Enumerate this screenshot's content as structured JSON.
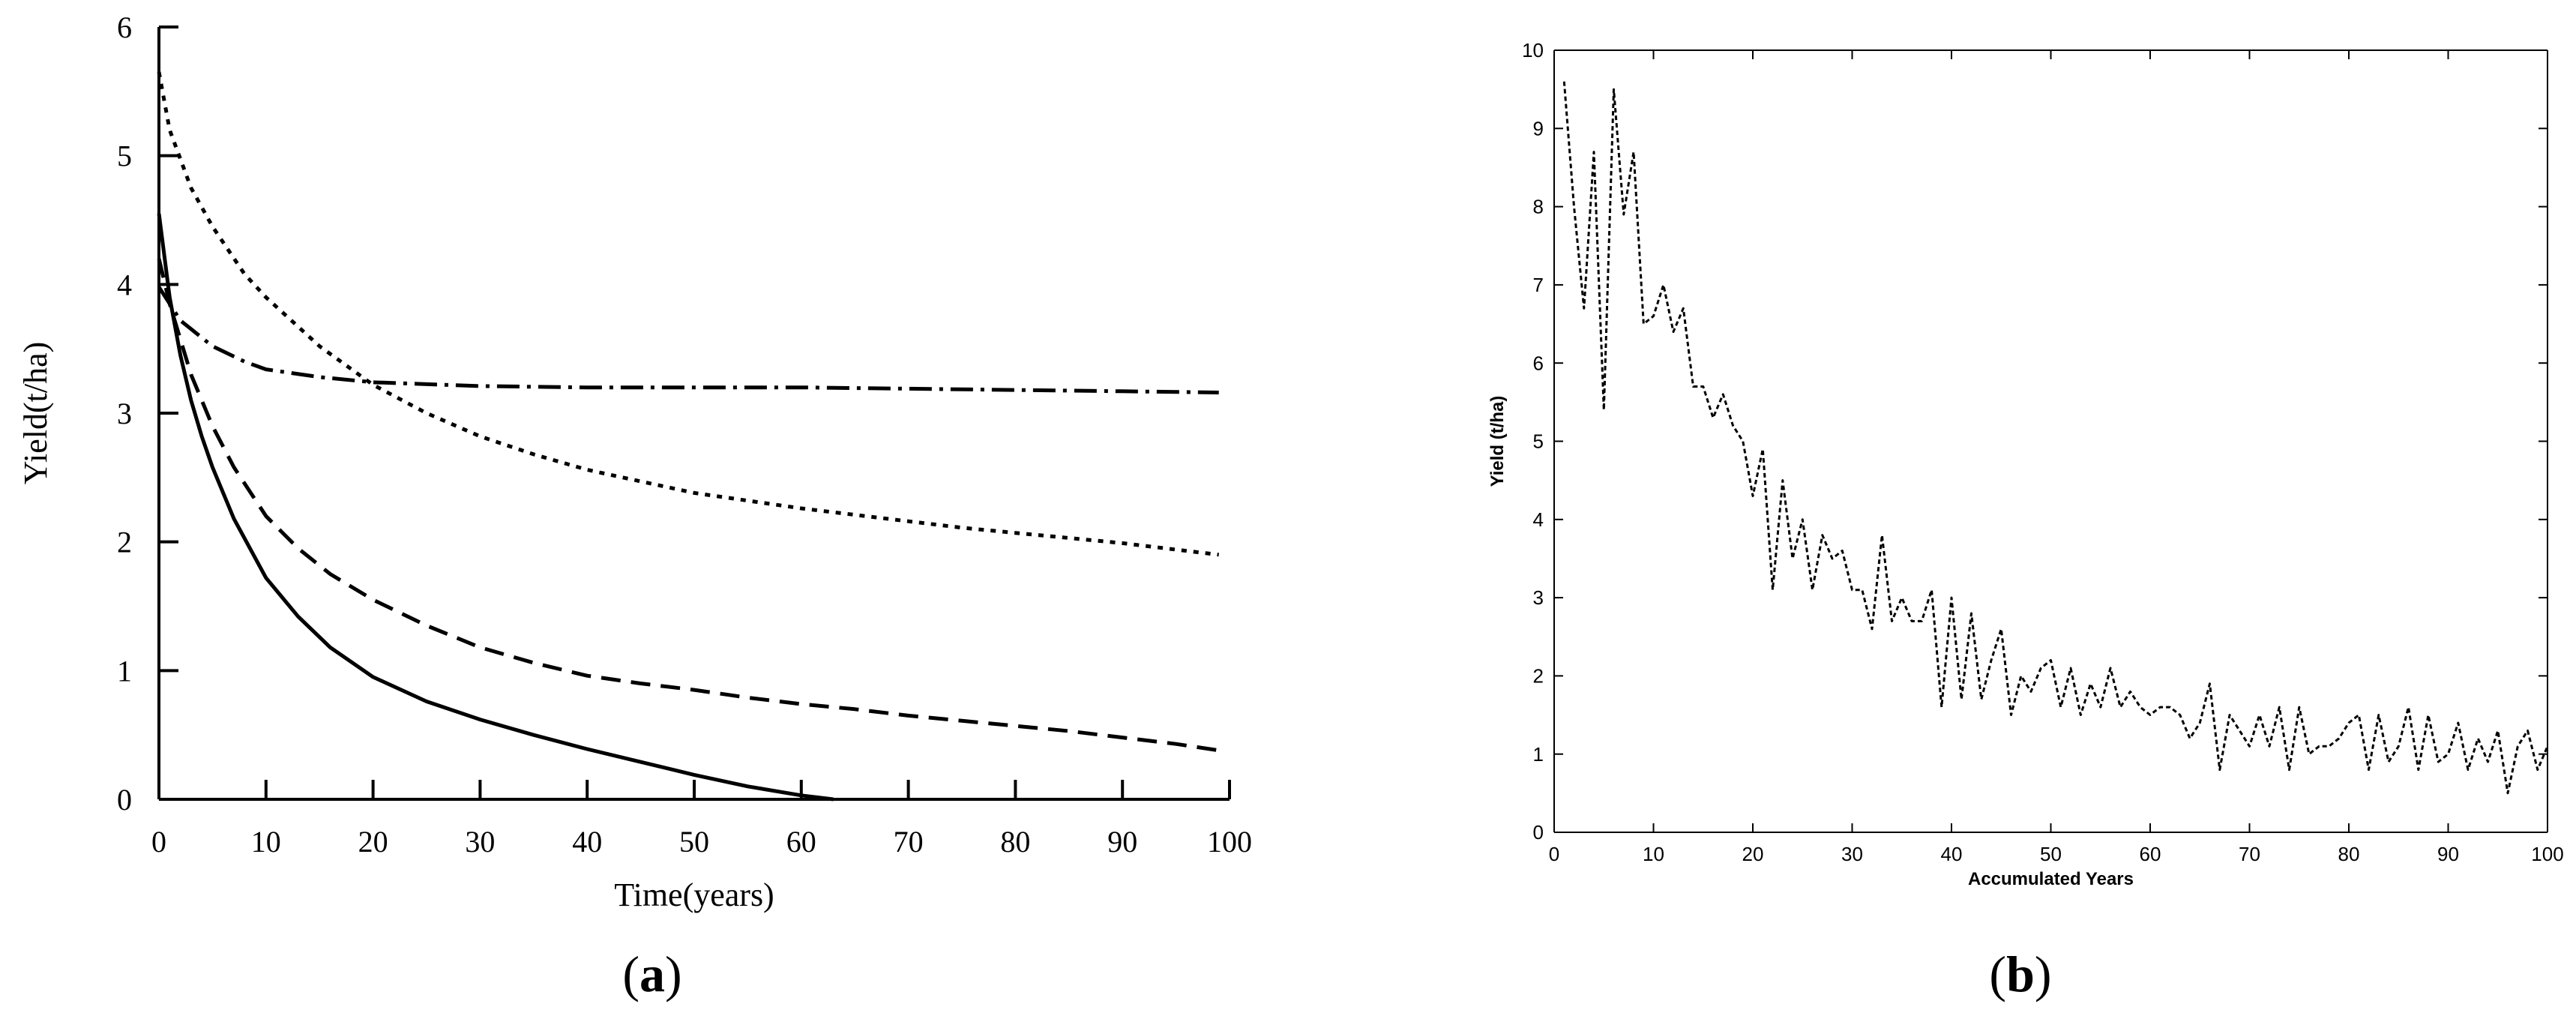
{
  "chart_data": [
    {
      "type": "line",
      "panel_label": "(a)",
      "panel_letter": "a",
      "xlabel": "Time(years)",
      "ylabel": "Yield(t/ha)",
      "xlim": [
        0,
        100
      ],
      "ylim": [
        0,
        6
      ],
      "x_ticks": [
        0,
        10,
        20,
        30,
        40,
        50,
        60,
        70,
        80,
        90,
        100
      ],
      "x_tick_labels": [
        "0",
        "10",
        "20",
        "30",
        "40",
        "50",
        "60",
        "70",
        "80",
        "90",
        "100"
      ],
      "y_ticks": [
        0,
        1,
        2,
        3,
        4,
        5,
        6
      ],
      "y_tick_labels": [
        "0",
        "1",
        "2",
        "3",
        "4",
        "5",
        "6"
      ],
      "grid": false,
      "legend": "none",
      "series": [
        {
          "style": "solid",
          "x": [
            0,
            1,
            2,
            3,
            4,
            5,
            7,
            10,
            13,
            16,
            20,
            25,
            30,
            35,
            40,
            45,
            50,
            55,
            60,
            63
          ],
          "y": [
            4.55,
            3.9,
            3.45,
            3.1,
            2.82,
            2.58,
            2.18,
            1.72,
            1.42,
            1.18,
            0.95,
            0.76,
            0.62,
            0.5,
            0.39,
            0.29,
            0.19,
            0.1,
            0.03,
            0.0
          ]
        },
        {
          "style": "dashed",
          "x": [
            0,
            1,
            3,
            5,
            7,
            10,
            13,
            16,
            20,
            25,
            30,
            35,
            40,
            45,
            50,
            55,
            60,
            65,
            70,
            75,
            80,
            85,
            90,
            95,
            99
          ],
          "y": [
            4.2,
            3.85,
            3.3,
            2.9,
            2.58,
            2.2,
            1.95,
            1.75,
            1.55,
            1.35,
            1.18,
            1.06,
            0.96,
            0.9,
            0.85,
            0.79,
            0.74,
            0.7,
            0.65,
            0.61,
            0.57,
            0.53,
            0.48,
            0.43,
            0.38
          ]
        },
        {
          "style": "dotted",
          "x": [
            0,
            1,
            3,
            5,
            8,
            10,
            15,
            20,
            25,
            30,
            35,
            40,
            45,
            50,
            55,
            60,
            65,
            70,
            75,
            80,
            85,
            90,
            95,
            99
          ],
          "y": [
            5.65,
            5.2,
            4.75,
            4.45,
            4.08,
            3.9,
            3.52,
            3.22,
            3.0,
            2.82,
            2.68,
            2.56,
            2.47,
            2.38,
            2.32,
            2.26,
            2.21,
            2.16,
            2.11,
            2.07,
            2.03,
            1.99,
            1.94,
            1.9
          ]
        },
        {
          "style": "dashdot",
          "x": [
            0,
            2,
            5,
            8,
            10,
            15,
            20,
            30,
            40,
            50,
            60,
            70,
            80,
            90,
            99
          ],
          "y": [
            3.98,
            3.72,
            3.52,
            3.4,
            3.34,
            3.28,
            3.24,
            3.21,
            3.2,
            3.2,
            3.2,
            3.19,
            3.18,
            3.17,
            3.16
          ]
        }
      ]
    },
    {
      "type": "line",
      "panel_label": "(b)",
      "panel_letter": "b",
      "xlabel": "Accumulated Years",
      "ylabel": "Yield (t/ha)",
      "xlim": [
        0,
        100
      ],
      "ylim": [
        0,
        10
      ],
      "x_ticks": [
        0,
        10,
        20,
        30,
        40,
        50,
        60,
        70,
        80,
        90,
        100
      ],
      "x_tick_labels": [
        "0",
        "10",
        "20",
        "30",
        "40",
        "50",
        "60",
        "70",
        "80",
        "90",
        "100"
      ],
      "y_ticks": [
        0,
        1,
        2,
        3,
        4,
        5,
        6,
        7,
        8,
        9,
        10
      ],
      "y_tick_labels": [
        "0",
        "1",
        "2",
        "3",
        "4",
        "5",
        "6",
        "7",
        "8",
        "9",
        "10"
      ],
      "grid": false,
      "legend": "none",
      "series": [
        {
          "style": "dotted",
          "x": [
            1,
            2,
            3,
            4,
            5,
            6,
            7,
            8,
            9,
            10,
            11,
            12,
            13,
            14,
            15,
            16,
            17,
            18,
            19,
            20,
            21,
            22,
            23,
            24,
            25,
            26,
            27,
            28,
            29,
            30,
            31,
            32,
            33,
            34,
            35,
            36,
            37,
            38,
            39,
            40,
            41,
            42,
            43,
            44,
            45,
            46,
            47,
            48,
            49,
            50,
            51,
            52,
            53,
            54,
            55,
            56,
            57,
            58,
            59,
            60,
            61,
            62,
            63,
            64,
            65,
            66,
            67,
            68,
            69,
            70,
            71,
            72,
            73,
            74,
            75,
            76,
            77,
            78,
            79,
            80,
            81,
            82,
            83,
            84,
            85,
            86,
            87,
            88,
            89,
            90,
            91,
            92,
            93,
            94,
            95,
            96,
            97,
            98,
            99,
            100
          ],
          "y": [
            9.6,
            8.0,
            6.7,
            8.7,
            5.4,
            9.5,
            7.9,
            8.7,
            6.5,
            6.6,
            7.0,
            6.4,
            6.7,
            5.7,
            5.7,
            5.3,
            5.6,
            5.2,
            5.0,
            4.3,
            4.9,
            3.1,
            4.5,
            3.5,
            4.0,
            3.1,
            3.8,
            3.5,
            3.6,
            3.1,
            3.1,
            2.6,
            3.8,
            2.7,
            3.0,
            2.7,
            2.7,
            3.1,
            1.6,
            3.0,
            1.7,
            2.8,
            1.7,
            2.2,
            2.6,
            1.5,
            2.0,
            1.8,
            2.1,
            2.2,
            1.6,
            2.1,
            1.5,
            1.9,
            1.6,
            2.1,
            1.6,
            1.8,
            1.6,
            1.5,
            1.6,
            1.6,
            1.5,
            1.2,
            1.4,
            1.9,
            0.8,
            1.5,
            1.3,
            1.1,
            1.5,
            1.1,
            1.6,
            0.8,
            1.6,
            1.0,
            1.1,
            1.1,
            1.2,
            1.4,
            1.5,
            0.8,
            1.5,
            0.9,
            1.1,
            1.6,
            0.8,
            1.5,
            0.9,
            1.0,
            1.4,
            0.8,
            1.2,
            0.9,
            1.3,
            0.5,
            1.1,
            1.3,
            0.8,
            1.1
          ]
        }
      ]
    }
  ]
}
